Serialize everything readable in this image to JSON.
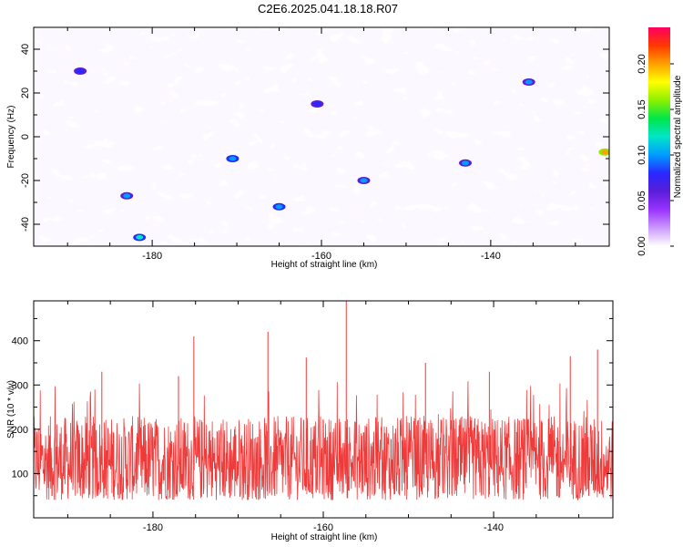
{
  "title": "C2E6.2025.041.18.18.R07",
  "chart_data": [
    {
      "type": "heatmap",
      "xlabel": "Height of straight line (km)",
      "ylabel": "Frequency (Hz)",
      "xlim": [
        -194,
        -126
      ],
      "ylim": [
        -50,
        50
      ],
      "xticks": [
        -180,
        -160,
        -140
      ],
      "yticks": [
        -40,
        -20,
        0,
        20,
        40
      ],
      "colorbar": {
        "label": "Normalized spectral amplitude",
        "range": [
          0,
          0.24
        ],
        "ticks": [
          "0.00",
          "0.05",
          "0.10",
          "0.15",
          "0.20"
        ],
        "colormap": [
          "#ffffff",
          "#cc99ff",
          "#9933ff",
          "#5a1ed8",
          "#2828ff",
          "#009cff",
          "#00e6c8",
          "#00e64a",
          "#8cf000",
          "#ffff00",
          "#ffa000",
          "#ff3800",
          "#ff0060"
        ]
      },
      "grid": false,
      "notes": "dense speckled noise field; values mostly 0.02-0.08 with scattered peaks to ~0.12, one peak near 0.20 at -126 km, -7 Hz",
      "peaks": [
        {
          "x": -126.5,
          "y": -7,
          "value": 0.2
        },
        {
          "x": -181.5,
          "y": -46,
          "value": 0.11
        },
        {
          "x": -170.5,
          "y": -10,
          "value": 0.1
        },
        {
          "x": -165.0,
          "y": -32,
          "value": 0.1
        },
        {
          "x": -183.0,
          "y": -27,
          "value": 0.09
        },
        {
          "x": -155.0,
          "y": -20,
          "value": 0.09
        },
        {
          "x": -143.0,
          "y": -12,
          "value": 0.09
        },
        {
          "x": -135.5,
          "y": 25,
          "value": 0.09
        },
        {
          "x": -160.5,
          "y": 15,
          "value": 0.08
        },
        {
          "x": -188.5,
          "y": 30,
          "value": 0.08
        }
      ]
    },
    {
      "type": "line",
      "xlabel": "Height of straight line (km)",
      "ylabel": "SNR (10 * v/v)",
      "xlim": [
        -194,
        -126
      ],
      "ylim": [
        0,
        490
      ],
      "xticks": [
        -180,
        -160,
        -140
      ],
      "yticks": [
        100,
        200,
        300,
        400
      ],
      "color": "#ef3a3a",
      "grid": false,
      "notes": "noisy trace with baseline ~50-250 and spikes",
      "peaks": [
        {
          "x": -157.3,
          "y": 490
        },
        {
          "x": -166.5,
          "y": 420
        },
        {
          "x": -175.2,
          "y": 410
        },
        {
          "x": -127.8,
          "y": 380
        },
        {
          "x": -131.0,
          "y": 365
        },
        {
          "x": -162.0,
          "y": 362
        },
        {
          "x": -148.0,
          "y": 350
        },
        {
          "x": -186.0,
          "y": 330
        },
        {
          "x": -140.5,
          "y": 330
        },
        {
          "x": -177.0,
          "y": 320
        }
      ]
    }
  ]
}
